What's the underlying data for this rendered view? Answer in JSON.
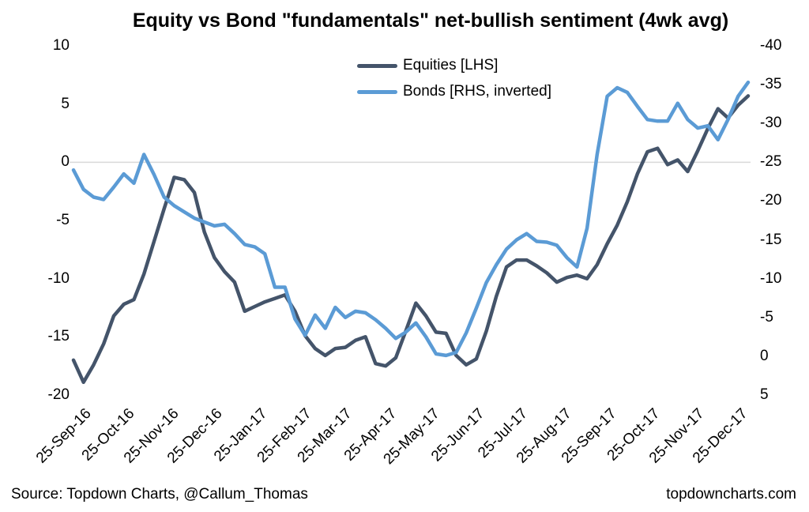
{
  "title": "Equity vs Bond \"fundamentals\" net-bullish sentiment (4wk avg)",
  "footer": {
    "source": "Source: Topdown Charts, @Callum_Thomas",
    "website": "topdowncharts.com"
  },
  "colors": {
    "equities": "#44546A",
    "bonds": "#5B9BD5",
    "gridline": "#D9D9D9",
    "text": "#000000",
    "background": "#FFFFFF"
  },
  "legend": {
    "items": [
      {
        "label": "Equities [LHS]",
        "color": "#44546A"
      },
      {
        "label": "Bonds [RHS, inverted]",
        "color": "#5B9BD5"
      }
    ]
  },
  "chart_data": {
    "type": "line",
    "title": "Equity vs Bond \"fundamentals\" net-bullish sentiment (4wk avg)",
    "x_frequency": "weekly",
    "x_start_label": "25-Sep-16",
    "x_tick_labels": [
      "25-Sep-16",
      "25-Oct-16",
      "25-Nov-16",
      "25-Dec-16",
      "25-Jan-17",
      "25-Feb-17",
      "25-Mar-17",
      "25-Apr-17",
      "25-May-17",
      "25-Jun-17",
      "25-Jul-17",
      "25-Aug-17",
      "25-Sep-17",
      "25-Oct-17",
      "25-Nov-17",
      "25-Dec-17"
    ],
    "x_tick_week_positions": [
      0,
      4.29,
      8.71,
      13,
      17.43,
      21.86,
      25.86,
      30.29,
      34.57,
      39,
      43.29,
      47.71,
      52.14,
      56.43,
      60.86,
      65.14
    ],
    "left_axis": {
      "ticks": [
        10,
        5,
        0,
        -5,
        -10,
        -15,
        -20
      ],
      "max": 10,
      "min": -20
    },
    "right_axis": {
      "ticks": [
        -40,
        -35,
        -30,
        -25,
        -20,
        -15,
        -10,
        -5,
        0,
        5
      ],
      "min": -40,
      "max": 5,
      "inverted": true
    },
    "gridline_value_lhs": 0,
    "grid": "single horizontal gridline at LHS 0 (aligns with RHS -25)",
    "legend_position": "top-center",
    "series": [
      {
        "name": "Equities [LHS]",
        "axis": "left",
        "color": "#44546A",
        "values": [
          -17.0,
          -18.9,
          -17.4,
          -15.6,
          -13.2,
          -12.2,
          -11.8,
          -9.6,
          -6.8,
          -4.0,
          -1.3,
          -1.5,
          -2.6,
          -6.0,
          -8.2,
          -9.4,
          -10.3,
          -12.8,
          -12.4,
          -12.0,
          -11.7,
          -11.4,
          -12.8,
          -14.9,
          -16.0,
          -16.6,
          -16.0,
          -15.9,
          -15.3,
          -15.0,
          -17.3,
          -17.5,
          -16.8,
          -14.5,
          -12.1,
          -13.2,
          -14.6,
          -14.7,
          -16.6,
          -17.4,
          -16.9,
          -14.5,
          -11.5,
          -9.0,
          -8.4,
          -8.4,
          -8.9,
          -9.5,
          -10.3,
          -9.9,
          -9.7,
          -10.0,
          -8.8,
          -7.0,
          -5.4,
          -3.4,
          -1.0,
          0.9,
          1.2,
          -0.2,
          0.2,
          -0.8,
          1.0,
          2.9,
          4.6,
          3.8,
          4.9,
          5.7
        ]
      },
      {
        "name": "Bonds [RHS, inverted]",
        "axis": "right",
        "color": "#5B9BD5",
        "values": [
          -24.0,
          -21.5,
          -20.5,
          -20.2,
          -21.8,
          -23.5,
          -22.3,
          -26.0,
          -23.4,
          -20.5,
          -19.4,
          -18.6,
          -17.8,
          -17.3,
          -16.8,
          -17.0,
          -15.8,
          -14.4,
          -14.1,
          -13.2,
          -8.9,
          -8.9,
          -4.8,
          -2.7,
          -5.3,
          -3.6,
          -6.3,
          -5.0,
          -5.8,
          -5.6,
          -4.7,
          -3.6,
          -2.3,
          -3.1,
          -4.3,
          -2.5,
          -0.3,
          -0.1,
          -0.5,
          -3.0,
          -6.2,
          -9.5,
          -11.8,
          -13.8,
          -15.0,
          -15.8,
          -14.8,
          -14.7,
          -14.3,
          -12.7,
          -11.5,
          -16.5,
          -26.0,
          -33.5,
          -34.6,
          -34.0,
          -32.2,
          -30.5,
          -30.3,
          -30.3,
          -32.6,
          -30.5,
          -29.4,
          -29.7,
          -27.9,
          -30.5,
          -33.5,
          -35.3
        ]
      }
    ]
  }
}
